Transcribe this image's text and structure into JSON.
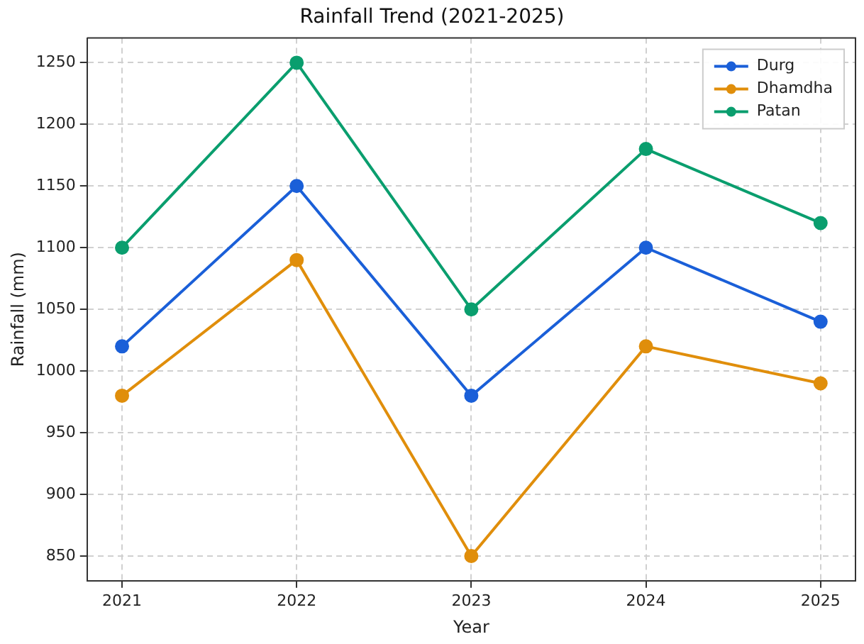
{
  "chart_data": {
    "type": "line",
    "title": "Rainfall Trend (2021-2025)",
    "xlabel": "Year",
    "ylabel": "Rainfall (mm)",
    "x": [
      2021,
      2022,
      2023,
      2024,
      2025
    ],
    "series": [
      {
        "name": "Durg",
        "color": "#1a5fd8",
        "values": [
          1020,
          1150,
          980,
          1100,
          1040
        ]
      },
      {
        "name": "Dhamdha",
        "color": "#e08e0b",
        "values": [
          980,
          1090,
          850,
          1020,
          990
        ]
      },
      {
        "name": "Patan",
        "color": "#0a9e6e",
        "values": [
          1100,
          1250,
          1050,
          1180,
          1120
        ]
      }
    ],
    "xlim": [
      2020.8,
      2025.2
    ],
    "xticks": [
      2021,
      2022,
      2023,
      2024,
      2025
    ],
    "ylim": [
      830,
      1270
    ],
    "yticks": [
      850,
      900,
      950,
      1000,
      1050,
      1100,
      1150,
      1200,
      1250
    ],
    "grid": true,
    "legend": "top right",
    "marker": "circle",
    "line_style": "solid"
  }
}
